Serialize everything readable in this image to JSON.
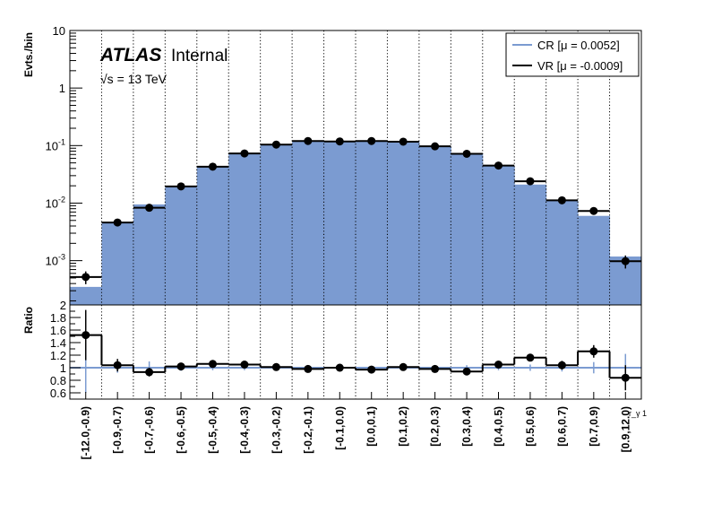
{
  "chart_data": [
    {
      "type": "bar",
      "panel": "main",
      "ylabel": "Evts./bin",
      "yscale": "log",
      "ylim": [
        0.00017,
        10
      ],
      "y_ticks": [
        {
          "value": 0.001,
          "base": "10",
          "exp": "-3"
        },
        {
          "value": 0.01,
          "base": "10",
          "exp": "-2"
        },
        {
          "value": 0.1,
          "base": "10",
          "exp": "-1"
        },
        {
          "value": 1,
          "base": "1",
          "exp": ""
        },
        {
          "value": 10,
          "base": "10",
          "exp": ""
        }
      ],
      "categories": [
        "[-12.0,-0.9)",
        "[-0.9,-0.7)",
        "[-0.7,-0.6)",
        "[-0.6,-0.5)",
        "[-0.5,-0.4)",
        "[-0.4,-0.3)",
        "[-0.3,-0.2)",
        "[-0.2,-0.1)",
        "[-0.1,0.0)",
        "[0.0,0.1)",
        "[0.1,0.2)",
        "[0.2,0.3)",
        "[0.3,0.4)",
        "[0.4,0.5)",
        "[0.5,0.6)",
        "[0.6,0.7)",
        "[0.7,0.9)",
        "[0.9,12.0)"
      ],
      "grid": "vertical dotted",
      "legend_position": "top-right",
      "annotations": {
        "atlas": "ATLAS",
        "internal": "Internal",
        "energy": "√s = 13 TeV",
        "axis_corner": "r_γ 1"
      },
      "series": [
        {
          "name": "CR [μ = 0.0052]",
          "style": "filled histogram",
          "color": "#7b9bd1",
          "values": [
            0.00035,
            0.0045,
            0.0095,
            0.019,
            0.042,
            0.071,
            0.105,
            0.122,
            0.12,
            0.12,
            0.118,
            0.097,
            0.073,
            0.044,
            0.021,
            0.011,
            0.006,
            0.00118
          ]
        },
        {
          "name": "VR [μ = -0.0009]",
          "style": "line histogram with markers",
          "color": "#000000",
          "values": [
            0.00052,
            0.0046,
            0.0083,
            0.0195,
            0.043,
            0.073,
            0.104,
            0.12,
            0.118,
            0.12,
            0.117,
            0.097,
            0.072,
            0.045,
            0.024,
            0.0112,
            0.0073,
            0.00098
          ],
          "err_low": [
            0.00013,
            0.0004,
            0.0006,
            0.001,
            0.0018,
            0.0025,
            0.003,
            0.003,
            0.003,
            0.003,
            0.003,
            0.003,
            0.0025,
            0.0018,
            0.001,
            0.0006,
            0.0005,
            0.00025
          ],
          "err_high": [
            0.00013,
            0.0004,
            0.0006,
            0.001,
            0.0018,
            0.0025,
            0.003,
            0.003,
            0.003,
            0.003,
            0.003,
            0.003,
            0.0025,
            0.0018,
            0.001,
            0.0006,
            0.0005,
            0.00025
          ]
        }
      ]
    },
    {
      "type": "line",
      "panel": "ratio",
      "ylabel": "Ratio",
      "ylim": [
        0.5,
        2
      ],
      "y_ticks": [
        0.6,
        0.8,
        1,
        1.2,
        1.4,
        1.6,
        1.8,
        2
      ],
      "y_tick_labels": [
        "0.6",
        "0.8",
        "1",
        "1.2",
        "1.4",
        "1.6",
        "1.8",
        "2"
      ],
      "reference_line": 1,
      "series": [
        {
          "name": "ratio",
          "color": "#000000",
          "values": [
            1.52,
            1.04,
            0.93,
            1.02,
            1.06,
            1.05,
            1.01,
            0.98,
            1.0,
            0.97,
            1.01,
            0.98,
            0.94,
            1.05,
            1.16,
            1.04,
            1.26,
            0.84
          ],
          "err": [
            0.4,
            0.1,
            0.07,
            0.05,
            0.04,
            0.04,
            0.04,
            0.03,
            0.03,
            0.03,
            0.03,
            0.03,
            0.04,
            0.04,
            0.05,
            0.07,
            0.1,
            0.2
          ]
        },
        {
          "name": "reference",
          "color": "#7b9bd1",
          "err": [
            0.4,
            0.08,
            0.1,
            0.05,
            0.04,
            0.04,
            0.04,
            0.03,
            0.03,
            0.03,
            0.03,
            0.03,
            0.04,
            0.04,
            0.05,
            0.06,
            0.09,
            0.22
          ]
        }
      ]
    }
  ]
}
